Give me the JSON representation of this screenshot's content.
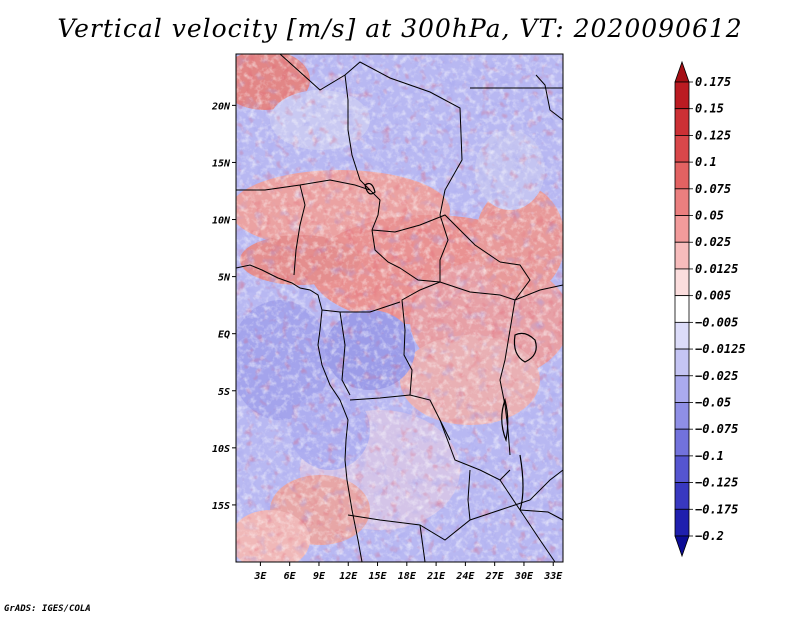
{
  "title": "Vertical velocity [m/s] at 300hPa, VT: 2020090612",
  "credit": "GrADS: IGES/COLA",
  "map": {
    "lat_labels": [
      "20N",
      "15N",
      "10N",
      "5N",
      "EQ",
      "5S",
      "10S",
      "15S"
    ],
    "lat_values": [
      20,
      15,
      10,
      5,
      0,
      -5,
      -10,
      -15
    ],
    "lon_labels": [
      "3E",
      "6E",
      "9E",
      "12E",
      "15E",
      "18E",
      "21E",
      "24E",
      "27E",
      "30E",
      "33E"
    ],
    "lon_values": [
      3,
      6,
      9,
      12,
      15,
      18,
      21,
      24,
      27,
      30,
      33
    ],
    "lat_range": [
      -20,
      24.5
    ],
    "lon_range": [
      0.5,
      34
    ]
  },
  "colorbar": {
    "labels": [
      "0.175",
      "0.15",
      "0.125",
      "0.1",
      "0.075",
      "0.05",
      "0.025",
      "0.0125",
      "0.005",
      "−0.005",
      "−0.0125",
      "−0.025",
      "−0.05",
      "−0.075",
      "−0.1",
      "−0.125",
      "−0.175",
      "−0.2"
    ],
    "colors": [
      "#a50f15",
      "#bb1b22",
      "#cc3035",
      "#d9474a",
      "#e26262",
      "#eb7f7f",
      "#f29b9b",
      "#f7bcbc",
      "#fbdddd",
      "#ffffff",
      "#dcdcf9",
      "#c4c4f3",
      "#aaaaee",
      "#8f8fe6",
      "#7272dc",
      "#5555d0",
      "#3838c0",
      "#1f1fae",
      "#0c0c96"
    ]
  }
}
